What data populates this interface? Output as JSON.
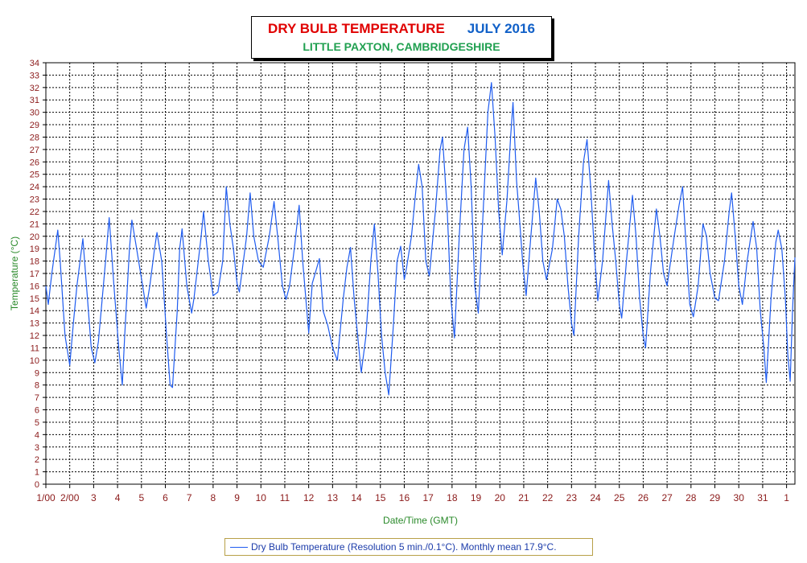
{
  "header": {
    "title": "DRY BULB TEMPERATURE",
    "month": "JULY 2016",
    "subtitle": "LITTLE PAXTON, CAMBRIDGESHIRE"
  },
  "legend": {
    "label": "Dry Bulb Temperature (Resolution 5 min./0.1°C). Monthly mean 17.9°C."
  },
  "colors": {
    "title": "#e00000",
    "month": "#1060c8",
    "subtitle": "#20a050",
    "series": "#1f5cf0",
    "axis_label": "#2a8a2a",
    "tick_label": "#8b1a1a"
  },
  "chart_data": {
    "type": "line",
    "xlabel": "Date/Time (GMT)",
    "ylabel": "Temperature (°C)",
    "ylim": [
      0,
      34
    ],
    "y_ticks": [
      0,
      1,
      2,
      3,
      4,
      5,
      6,
      7,
      8,
      9,
      10,
      11,
      12,
      13,
      14,
      15,
      16,
      17,
      18,
      19,
      20,
      21,
      22,
      23,
      24,
      25,
      26,
      27,
      28,
      29,
      30,
      31,
      32,
      33,
      34
    ],
    "x_unit": "days since 1 July 2016 00:00 GMT",
    "xlim": [
      0,
      31.35
    ],
    "x_tick_labels": [
      "1/00",
      "2/00",
      "3",
      "4",
      "5",
      "6",
      "7",
      "8",
      "9",
      "10",
      "11",
      "12",
      "13",
      "14",
      "15",
      "16",
      "17",
      "18",
      "19",
      "20",
      "21",
      "22",
      "23",
      "24",
      "25",
      "26",
      "27",
      "28",
      "29",
      "30",
      "31",
      "1"
    ],
    "grid": true,
    "legend_position": "bottom",
    "series": [
      {
        "name": "Dry Bulb Temperature (Resolution 5 min./0.1°C). Monthly mean 17.9°C.",
        "points": [
          [
            0,
            16
          ],
          [
            0.1,
            14.5
          ],
          [
            0.25,
            17
          ],
          [
            0.5,
            20.5
          ],
          [
            0.6,
            18
          ],
          [
            0.8,
            12
          ],
          [
            1.0,
            9.6
          ],
          [
            1.15,
            13
          ],
          [
            1.3,
            16
          ],
          [
            1.55,
            19.8
          ],
          [
            1.7,
            16
          ],
          [
            1.9,
            11
          ],
          [
            2.05,
            9.8
          ],
          [
            2.2,
            11.5
          ],
          [
            2.5,
            18
          ],
          [
            2.65,
            21.5
          ],
          [
            2.85,
            16
          ],
          [
            3.05,
            11
          ],
          [
            3.2,
            8
          ],
          [
            3.3,
            12
          ],
          [
            3.5,
            19
          ],
          [
            3.6,
            21.3
          ],
          [
            3.8,
            19
          ],
          [
            4.05,
            16
          ],
          [
            4.2,
            14.2
          ],
          [
            4.35,
            16
          ],
          [
            4.55,
            19
          ],
          [
            4.65,
            20.3
          ],
          [
            4.85,
            18
          ],
          [
            5.05,
            12
          ],
          [
            5.2,
            8
          ],
          [
            5.3,
            7.8
          ],
          [
            5.5,
            14
          ],
          [
            5.6,
            19
          ],
          [
            5.7,
            20.6
          ],
          [
            5.9,
            16
          ],
          [
            6.1,
            13.8
          ],
          [
            6.2,
            15
          ],
          [
            6.5,
            20
          ],
          [
            6.6,
            22
          ],
          [
            6.8,
            18
          ],
          [
            7.0,
            15.2
          ],
          [
            7.2,
            15.5
          ],
          [
            7.4,
            18
          ],
          [
            7.55,
            24
          ],
          [
            7.7,
            21
          ],
          [
            7.85,
            19
          ],
          [
            8.0,
            16.2
          ],
          [
            8.1,
            15.5
          ],
          [
            8.4,
            20
          ],
          [
            8.55,
            23.5
          ],
          [
            8.7,
            20
          ],
          [
            8.9,
            18
          ],
          [
            9.1,
            17.5
          ],
          [
            9.35,
            20
          ],
          [
            9.55,
            22.8
          ],
          [
            9.7,
            20
          ],
          [
            9.9,
            16
          ],
          [
            10.05,
            14.9
          ],
          [
            10.2,
            16
          ],
          [
            10.4,
            19
          ],
          [
            10.6,
            22.5
          ],
          [
            10.75,
            18
          ],
          [
            10.9,
            14.5
          ],
          [
            11.0,
            12.2
          ],
          [
            11.15,
            16.2
          ],
          [
            11.3,
            17.2
          ],
          [
            11.45,
            18.2
          ],
          [
            11.6,
            14
          ],
          [
            11.8,
            12.8
          ],
          [
            12.0,
            11
          ],
          [
            12.2,
            10
          ],
          [
            12.45,
            15
          ],
          [
            12.6,
            17.5
          ],
          [
            12.75,
            19.1
          ],
          [
            12.9,
            15
          ],
          [
            13.05,
            12
          ],
          [
            13.2,
            9
          ],
          [
            13.4,
            12
          ],
          [
            13.6,
            18
          ],
          [
            13.75,
            21
          ],
          [
            13.9,
            17
          ],
          [
            14.05,
            12
          ],
          [
            14.2,
            9
          ],
          [
            14.35,
            7.2
          ],
          [
            14.55,
            13
          ],
          [
            14.7,
            18
          ],
          [
            14.85,
            19.2
          ],
          [
            15.0,
            16.5
          ],
          [
            15.1,
            17.5
          ],
          [
            15.3,
            20
          ],
          [
            15.5,
            24
          ],
          [
            15.6,
            25.8
          ],
          [
            15.75,
            24
          ],
          [
            15.9,
            18
          ],
          [
            16.05,
            16.8
          ],
          [
            16.3,
            22
          ],
          [
            16.5,
            27
          ],
          [
            16.6,
            28
          ],
          [
            16.8,
            22
          ],
          [
            16.95,
            15
          ],
          [
            17.1,
            11.8
          ],
          [
            17.3,
            20
          ],
          [
            17.5,
            27
          ],
          [
            17.65,
            28.8
          ],
          [
            17.8,
            24
          ],
          [
            17.95,
            16
          ],
          [
            18.1,
            13.8
          ],
          [
            18.3,
            22
          ],
          [
            18.5,
            30
          ],
          [
            18.65,
            32.4
          ],
          [
            18.8,
            28
          ],
          [
            18.95,
            22
          ],
          [
            19.1,
            18.5
          ],
          [
            19.3,
            23
          ],
          [
            19.45,
            28
          ],
          [
            19.55,
            30.8
          ],
          [
            19.7,
            24.5
          ],
          [
            19.8,
            22
          ],
          [
            19.95,
            18
          ],
          [
            20.1,
            15.2
          ],
          [
            20.3,
            20
          ],
          [
            20.5,
            24.7
          ],
          [
            20.65,
            22
          ],
          [
            20.8,
            18
          ],
          [
            20.95,
            16.5
          ],
          [
            21.2,
            19
          ],
          [
            21.4,
            23
          ],
          [
            21.55,
            22.2
          ],
          [
            21.7,
            20
          ],
          [
            21.85,
            16
          ],
          [
            22.0,
            13
          ],
          [
            22.1,
            12
          ],
          [
            22.3,
            20
          ],
          [
            22.5,
            26
          ],
          [
            22.65,
            27.8
          ],
          [
            22.8,
            24
          ],
          [
            22.95,
            19
          ],
          [
            23.1,
            14.8
          ],
          [
            23.3,
            18
          ],
          [
            23.55,
            24.5
          ],
          [
            23.7,
            21
          ],
          [
            23.85,
            18
          ],
          [
            24.0,
            14.5
          ],
          [
            24.1,
            13.4
          ],
          [
            24.3,
            18
          ],
          [
            24.55,
            23.3
          ],
          [
            24.7,
            20
          ],
          [
            24.85,
            15
          ],
          [
            25.0,
            12
          ],
          [
            25.1,
            11
          ],
          [
            25.3,
            17
          ],
          [
            25.55,
            22.2
          ],
          [
            25.7,
            20
          ],
          [
            25.85,
            17
          ],
          [
            26.0,
            16
          ],
          [
            26.3,
            20
          ],
          [
            26.5,
            22.5
          ],
          [
            26.65,
            24
          ],
          [
            26.8,
            19
          ],
          [
            26.95,
            14.5
          ],
          [
            27.1,
            13.5
          ],
          [
            27.3,
            16
          ],
          [
            27.5,
            21
          ],
          [
            27.65,
            20
          ],
          [
            27.8,
            17
          ],
          [
            28.0,
            15
          ],
          [
            28.15,
            14.8
          ],
          [
            28.4,
            18
          ],
          [
            28.6,
            22
          ],
          [
            28.7,
            23.5
          ],
          [
            28.85,
            20
          ],
          [
            29.0,
            16
          ],
          [
            29.15,
            14.5
          ],
          [
            29.35,
            18
          ],
          [
            29.6,
            21.2
          ],
          [
            29.75,
            19
          ],
          [
            29.9,
            14
          ],
          [
            30.05,
            11
          ],
          [
            30.15,
            8.2
          ],
          [
            30.35,
            15
          ],
          [
            30.55,
            19.5
          ],
          [
            30.65,
            20.5
          ],
          [
            30.8,
            19
          ],
          [
            30.95,
            15
          ],
          [
            31.05,
            10.5
          ],
          [
            31.15,
            8.3
          ],
          [
            31.25,
            14
          ],
          [
            31.35,
            18.3
          ]
        ]
      }
    ]
  }
}
